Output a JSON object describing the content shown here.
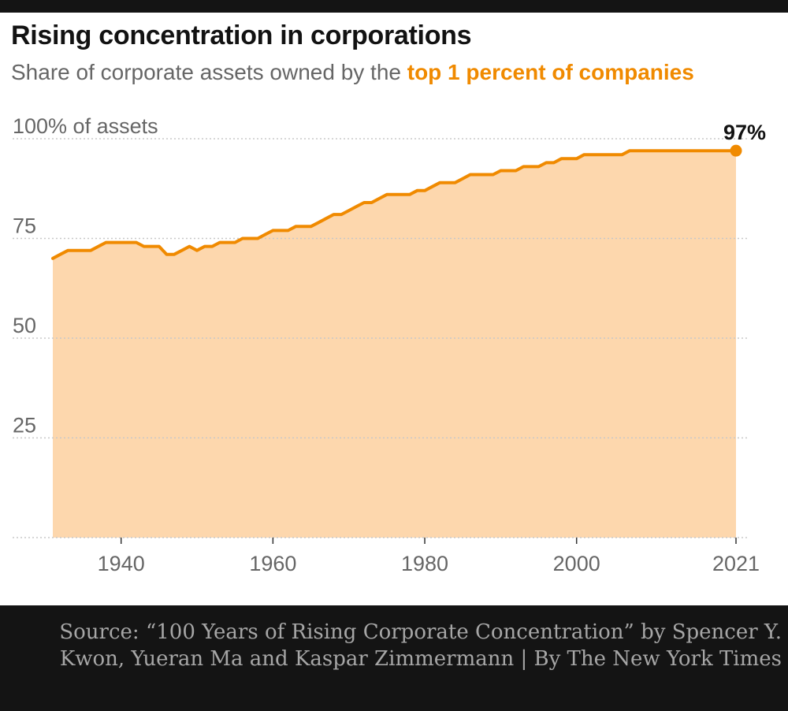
{
  "chart_data": {
    "type": "area",
    "title": "Rising concentration in corporations",
    "subtitle_prefix": "Share of corporate assets owned by the ",
    "subtitle_highlight": "top 1 percent of companies",
    "y_unit_label": "100% of assets",
    "y_ticks": [
      {
        "value": 100,
        "label": "100% of assets"
      },
      {
        "value": 75,
        "label": "75"
      },
      {
        "value": 50,
        "label": "50"
      },
      {
        "value": 25,
        "label": "25"
      },
      {
        "value": 0,
        "label": ""
      }
    ],
    "x_ticks": [
      {
        "value": 1940,
        "label": "1940"
      },
      {
        "value": 1960,
        "label": "1960"
      },
      {
        "value": 1980,
        "label": "1980"
      },
      {
        "value": 2000,
        "label": "2000"
      },
      {
        "value": 2021,
        "label": "2021"
      }
    ],
    "xlim": [
      1931,
      2021
    ],
    "ylim": [
      0,
      100
    ],
    "grid": true,
    "end_label": "97%",
    "series": [
      {
        "values": [
          [
            1931,
            70
          ],
          [
            1932,
            71
          ],
          [
            1933,
            72
          ],
          [
            1934,
            72
          ],
          [
            1935,
            72
          ],
          [
            1936,
            72
          ],
          [
            1937,
            73
          ],
          [
            1938,
            74
          ],
          [
            1939,
            74
          ],
          [
            1940,
            74
          ],
          [
            1941,
            74
          ],
          [
            1942,
            74
          ],
          [
            1943,
            73
          ],
          [
            1944,
            73
          ],
          [
            1945,
            73
          ],
          [
            1946,
            71
          ],
          [
            1947,
            71
          ],
          [
            1948,
            72
          ],
          [
            1949,
            73
          ],
          [
            1950,
            72
          ],
          [
            1951,
            73
          ],
          [
            1952,
            73
          ],
          [
            1953,
            74
          ],
          [
            1954,
            74
          ],
          [
            1955,
            74
          ],
          [
            1956,
            75
          ],
          [
            1957,
            75
          ],
          [
            1958,
            75
          ],
          [
            1959,
            76
          ],
          [
            1960,
            77
          ],
          [
            1961,
            77
          ],
          [
            1962,
            77
          ],
          [
            1963,
            78
          ],
          [
            1964,
            78
          ],
          [
            1965,
            78
          ],
          [
            1966,
            79
          ],
          [
            1967,
            80
          ],
          [
            1968,
            81
          ],
          [
            1969,
            81
          ],
          [
            1970,
            82
          ],
          [
            1971,
            83
          ],
          [
            1972,
            84
          ],
          [
            1973,
            84
          ],
          [
            1974,
            85
          ],
          [
            1975,
            86
          ],
          [
            1976,
            86
          ],
          [
            1977,
            86
          ],
          [
            1978,
            86
          ],
          [
            1979,
            87
          ],
          [
            1980,
            87
          ],
          [
            1981,
            88
          ],
          [
            1982,
            89
          ],
          [
            1983,
            89
          ],
          [
            1984,
            89
          ],
          [
            1985,
            90
          ],
          [
            1986,
            91
          ],
          [
            1987,
            91
          ],
          [
            1988,
            91
          ],
          [
            1989,
            91
          ],
          [
            1990,
            92
          ],
          [
            1991,
            92
          ],
          [
            1992,
            92
          ],
          [
            1993,
            93
          ],
          [
            1994,
            93
          ],
          [
            1995,
            93
          ],
          [
            1996,
            94
          ],
          [
            1997,
            94
          ],
          [
            1998,
            95
          ],
          [
            1999,
            95
          ],
          [
            2000,
            95
          ],
          [
            2001,
            96
          ],
          [
            2002,
            96
          ],
          [
            2003,
            96
          ],
          [
            2004,
            96
          ],
          [
            2005,
            96
          ],
          [
            2006,
            96
          ],
          [
            2007,
            97
          ],
          [
            2008,
            97
          ],
          [
            2009,
            97
          ],
          [
            2010,
            97
          ],
          [
            2011,
            97
          ],
          [
            2012,
            97
          ],
          [
            2013,
            97
          ],
          [
            2014,
            97
          ],
          [
            2015,
            97
          ],
          [
            2016,
            97
          ],
          [
            2017,
            97
          ],
          [
            2018,
            97
          ],
          [
            2019,
            97
          ],
          [
            2020,
            97
          ],
          [
            2021,
            97
          ]
        ]
      }
    ],
    "colors": {
      "line": "#f08a00",
      "area": "#fdd7ad",
      "highlight": "#f08a00",
      "grid": "#c8c8c8",
      "tick_text": "#666666"
    }
  },
  "footer": {
    "source_text": "Source: “100 Years of Rising Corporate Concentration” by Spencer Y. Kwon, Yueran Ma and Kaspar Zimmermann | By The New York Times"
  }
}
